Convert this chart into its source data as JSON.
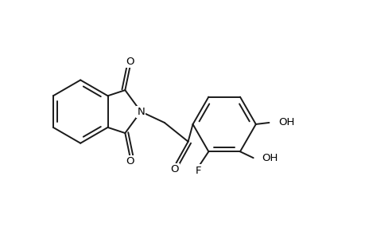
{
  "bg_color": "#ffffff",
  "line_color": "#1a1a1a",
  "line_width": 1.4,
  "font_size": 9.5,
  "figsize": [
    4.6,
    3.0
  ],
  "dpi": 100,
  "xlim": [
    0,
    10.5
  ],
  "ylim": [
    1.0,
    8.5
  ]
}
